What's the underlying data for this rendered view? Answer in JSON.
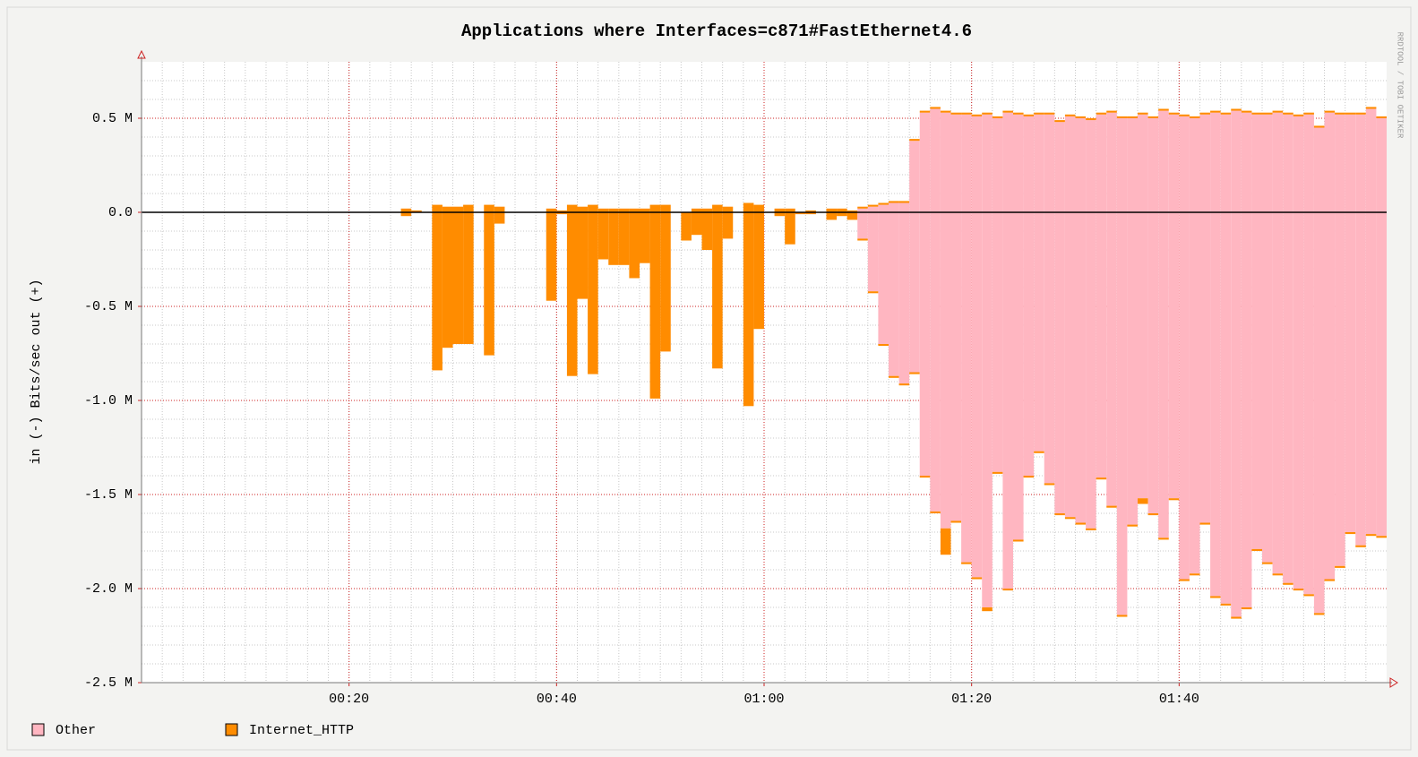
{
  "chart_data": {
    "type": "stacked-bar",
    "title": "Applications where Interfaces=c871#FastEthernet4.6",
    "ylabel": "in (-)   Bits/sec   out (+)",
    "watermark": "RRDTOOL / TOBI OETIKER",
    "grid": true,
    "xlim": [
      0,
      120
    ],
    "xticks": [
      {
        "value": 20,
        "label": "00:20"
      },
      {
        "value": 40,
        "label": "00:40"
      },
      {
        "value": 60,
        "label": "01:00"
      },
      {
        "value": 80,
        "label": "01:20"
      },
      {
        "value": 100,
        "label": "01:40"
      }
    ],
    "ylim": [
      -2.5,
      0.8
    ],
    "yticks": [
      {
        "value": -2.5,
        "label": "-2.5 M"
      },
      {
        "value": -2,
        "label": "-2.0 M"
      },
      {
        "value": -1.5,
        "label": "-1.5 M"
      },
      {
        "value": -1,
        "label": "-1.0 M"
      },
      {
        "value": -0.5,
        "label": "-0.5 M"
      },
      {
        "value": 0,
        "label": "0.0"
      },
      {
        "value": 0.5,
        "label": "0.5 M"
      }
    ],
    "x": [
      25,
      26,
      27,
      28,
      29,
      30,
      31,
      32,
      33,
      34,
      35,
      36,
      37,
      38,
      39,
      40,
      41,
      42,
      43,
      44,
      45,
      46,
      47,
      48,
      49,
      50,
      51,
      52,
      53,
      54,
      55,
      56,
      57,
      58,
      59,
      60,
      61,
      62,
      63,
      64,
      65,
      66,
      67,
      68,
      69,
      70,
      71,
      72,
      73,
      74,
      75,
      76,
      77,
      78,
      79,
      80,
      81,
      82,
      83,
      84,
      85,
      86,
      87,
      88,
      89,
      90,
      91,
      92,
      93,
      94,
      95,
      96,
      97,
      98,
      99,
      100,
      101,
      102,
      103,
      104,
      105,
      106,
      107,
      108,
      109,
      110,
      111,
      112,
      113,
      114,
      115,
      116,
      117,
      118,
      119
    ],
    "series": [
      {
        "name": "Other",
        "color": "#ffb6c1",
        "out": [
          null,
          null,
          null,
          null,
          null,
          null,
          null,
          null,
          null,
          null,
          null,
          null,
          null,
          null,
          null,
          null,
          null,
          null,
          null,
          null,
          null,
          null,
          null,
          null,
          null,
          null,
          null,
          null,
          null,
          null,
          null,
          null,
          null,
          null,
          null,
          null,
          null,
          null,
          null,
          null,
          null,
          null,
          null,
          null,
          0.02,
          0.03,
          0.04,
          0.05,
          0.05,
          0.38,
          0.53,
          0.55,
          0.53,
          0.52,
          0.52,
          0.51,
          0.52,
          0.5,
          0.53,
          0.52,
          0.51,
          0.52,
          0.52,
          0.48,
          0.51,
          0.5,
          0.49,
          0.52,
          0.53,
          0.5,
          0.5,
          0.52,
          0.5,
          0.54,
          0.52,
          0.51,
          0.5,
          0.52,
          0.53,
          0.52,
          0.54,
          0.53,
          0.52,
          0.52,
          0.53,
          0.52,
          0.51,
          0.52,
          0.45,
          0.53,
          0.52,
          0.52,
          0.52,
          0.55,
          0.5
        ],
        "in": [
          null,
          null,
          null,
          null,
          null,
          null,
          null,
          null,
          null,
          null,
          null,
          null,
          null,
          null,
          null,
          null,
          null,
          null,
          null,
          null,
          null,
          null,
          null,
          null,
          null,
          null,
          null,
          null,
          null,
          null,
          null,
          null,
          null,
          null,
          null,
          null,
          null,
          null,
          null,
          null,
          null,
          null,
          null,
          null,
          -0.14,
          -0.42,
          -0.7,
          -0.87,
          -0.91,
          -0.85,
          -1.4,
          -1.59,
          -1.68,
          -1.64,
          -1.86,
          -1.94,
          -2.1,
          -1.38,
          -2.0,
          -1.74,
          -1.4,
          -1.27,
          -1.44,
          -1.6,
          -1.62,
          -1.65,
          -1.68,
          -1.41,
          -1.56,
          -2.14,
          -1.66,
          -1.52,
          -1.6,
          -1.73,
          -1.52,
          -1.95,
          -1.92,
          -1.65,
          -2.04,
          -2.08,
          -2.15,
          -2.1,
          -1.79,
          -1.86,
          -1.92,
          -1.97,
          -2.0,
          -2.03,
          -2.13,
          -1.95,
          -1.88,
          -1.7,
          -1.77,
          -1.71,
          -1.72
        ]
      },
      {
        "name": "Internet_HTTP",
        "color": "#ff8c00",
        "out": [
          0.02,
          0.01,
          0,
          0.04,
          0.03,
          0.03,
          0.04,
          0,
          0.04,
          0.03,
          0,
          0,
          0,
          0,
          0.02,
          0.01,
          0.04,
          0.03,
          0.04,
          0.02,
          0.02,
          0.02,
          0.02,
          0.02,
          0.04,
          0.04,
          0,
          0,
          0.02,
          0.02,
          0.04,
          0.03,
          0,
          0.05,
          0.04,
          0,
          0.02,
          0.02,
          0,
          0.01,
          0,
          0.02,
          0.02,
          0.01,
          0.01,
          0.01,
          0.01,
          0.01,
          0.01,
          0.01,
          0.01,
          0.01,
          0.01,
          0.01,
          0.01,
          0.01,
          0.01,
          0.01,
          0.01,
          0.01,
          0.01,
          0.01,
          0.01,
          0.01,
          0.01,
          0.01,
          0.01,
          0.01,
          0.01,
          0.01,
          0.01,
          0.01,
          0.01,
          0.01,
          0.01,
          0.01,
          0.01,
          0.01,
          0.01,
          0.01,
          0.01,
          0.01,
          0.01,
          0.01,
          0.01,
          0.01,
          0.01,
          0.01,
          0.01,
          0.01,
          0.01,
          0.01,
          0.01,
          0.01,
          0.01
        ],
        "in": [
          -0.02,
          0,
          0,
          -0.84,
          -0.72,
          -0.7,
          -0.7,
          0,
          -0.76,
          -0.06,
          0,
          0,
          0,
          0,
          -0.47,
          -0.01,
          -0.87,
          -0.46,
          -0.86,
          -0.25,
          -0.28,
          -0.28,
          -0.35,
          -0.27,
          -0.99,
          -0.74,
          0,
          -0.15,
          -0.12,
          -0.2,
          -0.83,
          -0.14,
          0,
          -1.03,
          -0.62,
          0,
          -0.02,
          -0.17,
          -0.01,
          -0.01,
          0,
          -0.04,
          -0.02,
          -0.04,
          -0.01,
          -0.01,
          -0.01,
          -0.01,
          -0.01,
          -0.01,
          -0.01,
          -0.01,
          -0.14,
          -0.01,
          -0.01,
          -0.01,
          -0.02,
          -0.01,
          -0.01,
          -0.01,
          -0.01,
          -0.01,
          -0.01,
          -0.01,
          -0.01,
          -0.01,
          -0.01,
          -0.01,
          -0.01,
          -0.01,
          -0.01,
          -0.03,
          -0.01,
          -0.01,
          -0.01,
          -0.01,
          -0.01,
          -0.01,
          -0.01,
          -0.01,
          -0.01,
          -0.01,
          -0.01,
          -0.01,
          -0.01,
          -0.01,
          -0.01,
          -0.01,
          -0.01,
          -0.01,
          -0.01,
          -0.01,
          -0.01,
          -0.01,
          -0.01
        ]
      }
    ]
  }
}
